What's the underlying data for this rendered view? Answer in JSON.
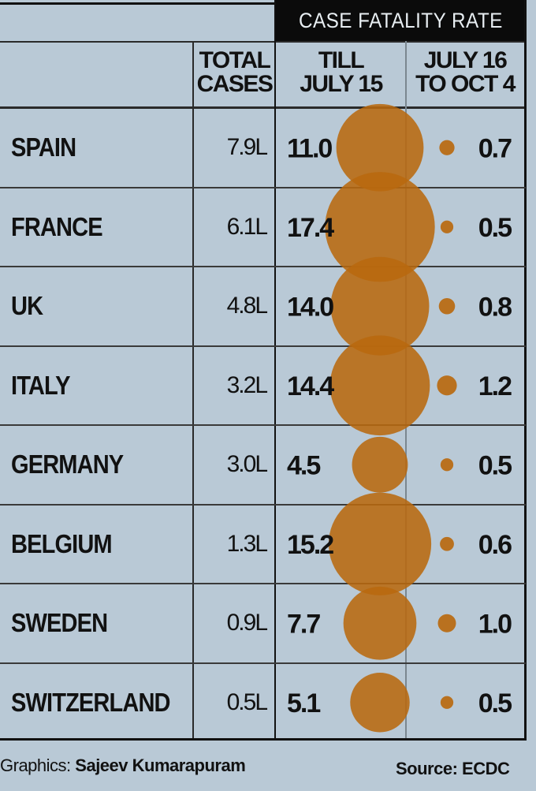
{
  "header": {
    "banner": "CASE FATALITY RATE",
    "total_cases_line1": "TOTAL",
    "total_cases_line2": "CASES",
    "till_line1": "TILL",
    "till_line2": "JULY 15",
    "later_line1": "JULY 16",
    "later_line2": "TO OCT 4"
  },
  "chart_data": {
    "type": "table",
    "columns": [
      "TOTAL CASES",
      "TILL JULY 15",
      "JULY 16 TO OCT 4"
    ],
    "rows": [
      {
        "country": "SPAIN",
        "cases": "7.9L",
        "till_july15": 11.0,
        "july16_oct4": 0.7
      },
      {
        "country": "FRANCE",
        "cases": "6.1L",
        "till_july15": 17.4,
        "july16_oct4": 0.5
      },
      {
        "country": "UK",
        "cases": "4.8L",
        "till_july15": 14.0,
        "july16_oct4": 0.8
      },
      {
        "country": "ITALY",
        "cases": "3.2L",
        "till_july15": 14.4,
        "july16_oct4": 1.2
      },
      {
        "country": "GERMANY",
        "cases": "3.0L",
        "till_july15": 4.5,
        "july16_oct4": 0.5
      },
      {
        "country": "BELGIUM",
        "cases": "1.3L",
        "till_july15": 15.2,
        "july16_oct4": 0.6
      },
      {
        "country": "SWEDEN",
        "cases": "0.9L",
        "till_july15": 7.7,
        "july16_oct4": 1.0
      },
      {
        "country": "SWITZERLAND",
        "cases": "0.5L",
        "till_july15": 5.1,
        "july16_oct4": 0.5
      }
    ],
    "bubble_color": "#b8690f"
  },
  "footer": {
    "graphics_label": "Graphics:",
    "graphics_name": "Sajeev Kumarapuram",
    "source": "Source: ECDC"
  }
}
